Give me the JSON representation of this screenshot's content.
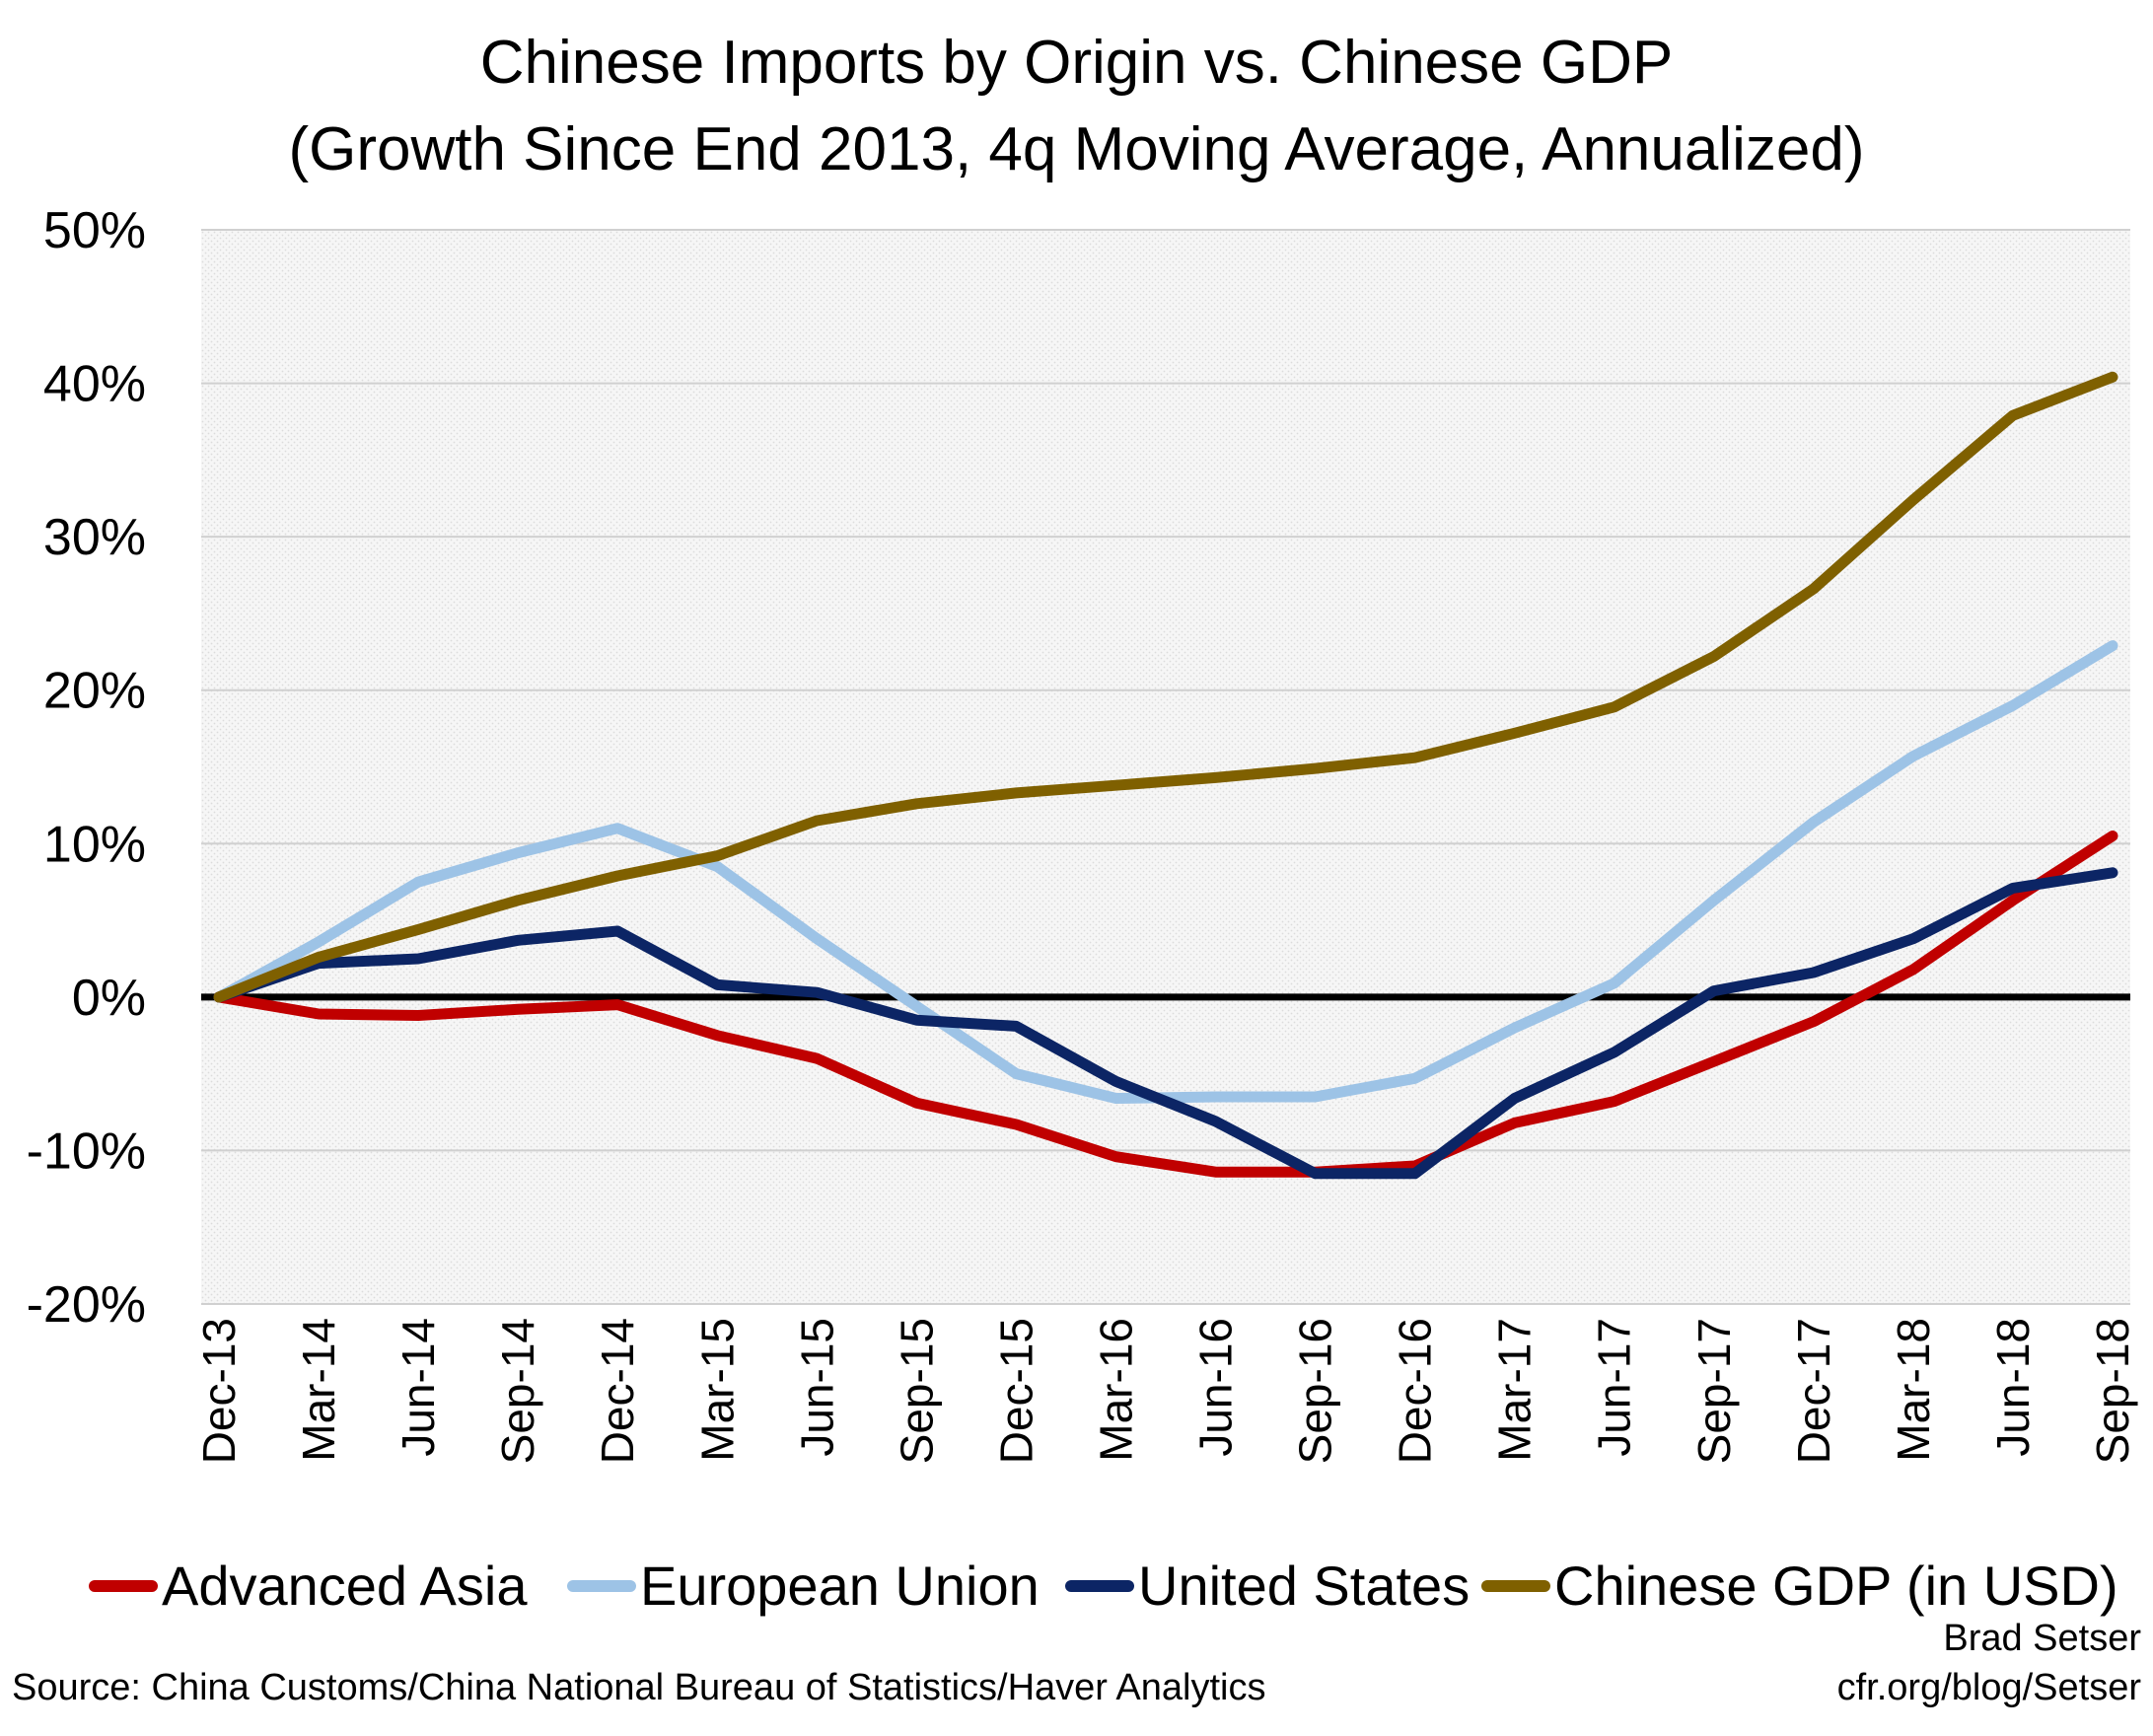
{
  "chart_data": {
    "type": "line",
    "title": "Chinese Imports by Origin vs. Chinese GDP",
    "subtitle": "(Growth Since End 2013, 4q Moving Average, Annualized)",
    "xlabel": "",
    "ylabel": "",
    "ylim": [
      -20,
      50
    ],
    "yticks": [
      50,
      40,
      30,
      20,
      10,
      0,
      -10,
      -20
    ],
    "ytick_labels": [
      "50%",
      "40%",
      "30%",
      "20%",
      "10%",
      "0%",
      "-10%",
      "-20%"
    ],
    "grid": true,
    "legend_position": "bottom",
    "categories": [
      "Dec-13",
      "Mar-14",
      "Jun-14",
      "Sep-14",
      "Dec-14",
      "Mar-15",
      "Jun-15",
      "Sep-15",
      "Dec-15",
      "Mar-16",
      "Jun-16",
      "Sep-16",
      "Dec-16",
      "Mar-17",
      "Jun-17",
      "Sep-17",
      "Dec-17",
      "Mar-18",
      "Jun-18",
      "Sep-18"
    ],
    "series": [
      {
        "name": "Advanced Asia",
        "color": "#c00000",
        "values": [
          0,
          -1.1,
          -1.2,
          -0.8,
          -0.5,
          -2.5,
          -4.0,
          -6.9,
          -8.3,
          -10.4,
          -11.4,
          -11.4,
          -11.0,
          -8.2,
          -6.8,
          -4.2,
          -1.6,
          1.8,
          6.3,
          10.5
        ]
      },
      {
        "name": "European Union",
        "color": "#9dc3e6",
        "values": [
          0,
          3.6,
          7.5,
          9.4,
          11.0,
          8.5,
          3.8,
          -0.6,
          -5.0,
          -6.6,
          -6.5,
          -6.5,
          -5.3,
          -2.0,
          0.9,
          6.3,
          11.4,
          15.7,
          19.0,
          22.9
        ]
      },
      {
        "name": "United States",
        "color": "#0c2565",
        "values": [
          0,
          2.2,
          2.5,
          3.7,
          4.3,
          0.8,
          0.3,
          -1.5,
          -1.9,
          -5.5,
          -8.1,
          -11.5,
          -11.5,
          -6.6,
          -3.6,
          0.4,
          1.6,
          3.8,
          7.1,
          8.1
        ]
      },
      {
        "name": "Chinese GDP (in USD)",
        "color": "#7f6000",
        "values": [
          0,
          2.6,
          4.4,
          6.3,
          7.9,
          9.2,
          11.5,
          12.6,
          13.3,
          13.8,
          14.3,
          14.9,
          15.6,
          17.2,
          18.9,
          22.2,
          26.6,
          32.4,
          37.9,
          40.4
        ]
      }
    ]
  },
  "source": "Source: China Customs/China National Bureau of Statistics/Haver Analytics",
  "credit": {
    "author": "Brad Setser",
    "site": "cfr.org/blog/Setser"
  }
}
